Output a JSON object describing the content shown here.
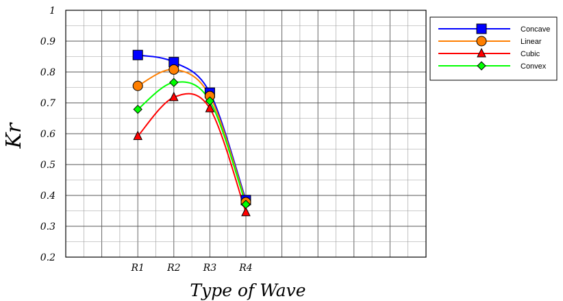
{
  "chart_data": {
    "type": "line",
    "categories": [
      "R1",
      "R2",
      "R3",
      "R4"
    ],
    "series": [
      {
        "name": "Concave",
        "values": [
          0.855,
          0.832,
          0.733,
          0.385
        ],
        "color": "#0000ff",
        "marker": "square"
      },
      {
        "name": "Linear",
        "values": [
          0.755,
          0.808,
          0.722,
          0.378
        ],
        "color": "#ff7f00",
        "marker": "circle"
      },
      {
        "name": "Cubic",
        "values": [
          0.592,
          0.718,
          0.682,
          0.345
        ],
        "color": "#ff0000",
        "marker": "triangle"
      },
      {
        "name": "Convex",
        "values": [
          0.679,
          0.766,
          0.706,
          0.371
        ],
        "color": "#00ff00",
        "marker": "diamond"
      }
    ],
    "xlabel": "Type of Wave",
    "ylabel": "Kr",
    "ylim": [
      0.2,
      1
    ],
    "yticks": [
      "0.2",
      "0.3",
      "0.4",
      "0.5",
      "0.6",
      "0.7",
      "0.8",
      "0.9",
      "1"
    ],
    "grid": true,
    "legend_position": "top-right",
    "line_style": "smoothed"
  }
}
